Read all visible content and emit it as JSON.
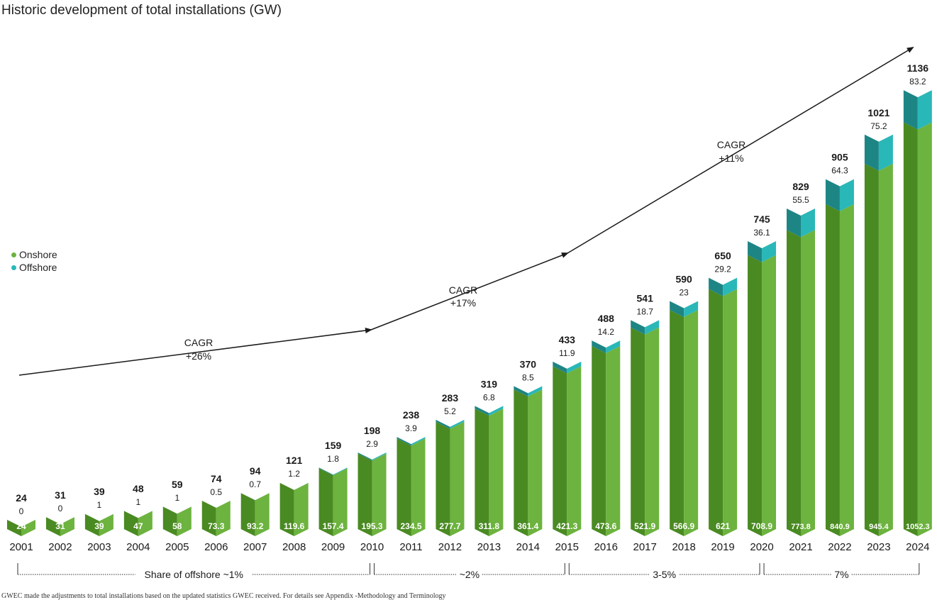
{
  "title": "Historic development of total installations (GW)",
  "legend": [
    {
      "label": "Onshore",
      "color": "#6db33f"
    },
    {
      "label": "Offshore",
      "color": "#2ab7b7"
    }
  ],
  "footnote": "GWEC made the adjustments to total installations based on the updated statistics GWEC received. For details see Appendix -Methodology and Terminology",
  "colors": {
    "onshore_front": "#6db33f",
    "onshore_side": "#4a8a22",
    "offshore_front": "#2ab7b7",
    "offshore_side": "#1e8585"
  },
  "chart_data": {
    "type": "bar",
    "stacked": true,
    "categories": [
      "2001",
      "2002",
      "2003",
      "2004",
      "2005",
      "2006",
      "2007",
      "2008",
      "2009",
      "2010",
      "2011",
      "2012",
      "2013",
      "2014",
      "2015",
      "2016",
      "2017",
      "2018",
      "2019",
      "2020",
      "2021",
      "2022",
      "2023",
      "2024"
    ],
    "series": [
      {
        "name": "Onshore",
        "values": [
          24,
          31,
          39,
          47,
          58,
          73.3,
          93.2,
          119.6,
          157.4,
          195.3,
          234.5,
          277.7,
          311.8,
          361.4,
          421.3,
          473.6,
          521.9,
          566.9,
          621,
          708.9,
          773.8,
          840.9,
          945.4,
          1052.3
        ]
      },
      {
        "name": "Offshore",
        "values": [
          0,
          0,
          1,
          1,
          1,
          0.5,
          0.7,
          1.2,
          1.8,
          2.9,
          3.9,
          5.2,
          6.8,
          8.5,
          11.9,
          14.2,
          18.7,
          23,
          29.2,
          36.1,
          55.5,
          64.3,
          75.2,
          83.2
        ]
      }
    ],
    "onshore_labels": [
      "24",
      "31",
      "39",
      "47",
      "58",
      "73.3",
      "93.2",
      "119.6",
      "157.4",
      "195.3",
      "234.5",
      "277.7",
      "311.8",
      "361.4",
      "421.3",
      "473.6",
      "521.9",
      "566.9",
      "621",
      "708.9",
      "773.8",
      "840.9",
      "945.4",
      "1052.3"
    ],
    "offshore_labels": [
      "0",
      "0",
      "1",
      "1",
      "1",
      "0.5",
      "0.7",
      "1.2",
      "1.8",
      "2.9",
      "3.9",
      "5.2",
      "6.8",
      "8.5",
      "11.9",
      "14.2",
      "18.7",
      "23",
      "29.2",
      "36.1",
      "55.5",
      "64.3",
      "75.2",
      "83.2"
    ],
    "total_labels": [
      "24",
      "31",
      "39",
      "48",
      "59",
      "74",
      "94",
      "121",
      "159",
      "198",
      "238",
      "283",
      "319",
      "370",
      "433",
      "488",
      "541",
      "590",
      "650",
      "745",
      "829",
      "905",
      "1021",
      "1136"
    ],
    "ylim": [
      0,
      1136
    ],
    "cagr": [
      {
        "label": "CAGR",
        "value": "+26%"
      },
      {
        "label": "CAGR",
        "value": "+17%"
      },
      {
        "label": "CAGR",
        "value": "+11%"
      }
    ],
    "share_of_offshore": [
      {
        "label": "Share of offshore ~1%",
        "from": "2001",
        "to": "2010"
      },
      {
        "label": "~2%",
        "from": "2010",
        "to": "2015"
      },
      {
        "label": "3-5%",
        "from": "2015",
        "to": "2020"
      },
      {
        "label": "7%",
        "from": "2020",
        "to": "2024"
      }
    ]
  }
}
